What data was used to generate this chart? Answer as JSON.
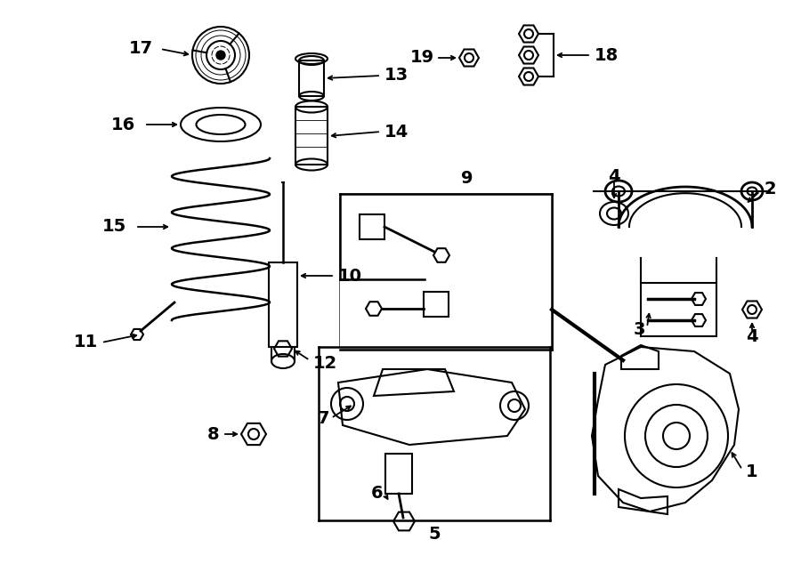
{
  "bg_color": "#ffffff",
  "line_color": "#000000",
  "fig_width": 9.0,
  "fig_height": 6.61,
  "dpi": 100,
  "xlim": [
    0,
    900
  ],
  "ylim": [
    661,
    0
  ]
}
